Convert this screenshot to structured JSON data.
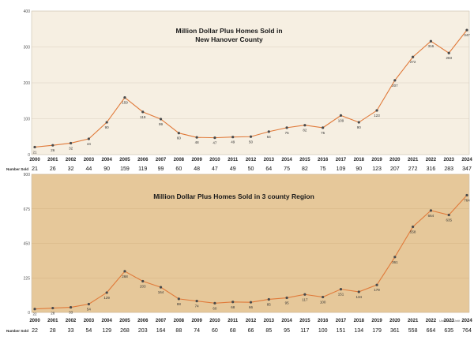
{
  "chart_data": [
    {
      "type": "line",
      "title": "Million Dollar Plus Homes Sold in\nNew Hanover County",
      "row_label": "Number Sold",
      "categories": [
        "2000",
        "2001",
        "2002",
        "2003",
        "2004",
        "2005",
        "2006",
        "2007",
        "2008",
        "2009",
        "2010",
        "2011",
        "2012",
        "2013",
        "2014",
        "2015",
        "2016",
        "2017",
        "2018",
        "2019",
        "2020",
        "2021",
        "2022",
        "2023",
        "2024"
      ],
      "series": [
        {
          "values": [
            21,
            26,
            32,
            44,
            90,
            159,
            119,
            99,
            60,
            48,
            47,
            49,
            50,
            64,
            75,
            82,
            75,
            109,
            90,
            123,
            207,
            272,
            316,
            283,
            347
          ]
        }
      ],
      "point_labels": [
        "21",
        "26",
        "32",
        "44",
        "90",
        "159",
        "119",
        "99",
        "60",
        "48",
        "47",
        "49",
        "50",
        "64",
        "75",
        "82",
        "75",
        "109",
        "90",
        "123",
        "207",
        "272",
        "316",
        "283",
        "347"
      ],
      "ylim": [
        0,
        400
      ],
      "yticks": [
        "0",
        "100",
        "200",
        "300",
        "400"
      ],
      "grid": true,
      "colors": {
        "background": "#f6efe2",
        "line": "#e07a3a",
        "marker": "#4a4a4a",
        "grid": "#d9d0bf"
      }
    },
    {
      "type": "line",
      "title": "Million Dollar Plus Homes Sold in 3 county Region",
      "row_label": "Number Sold",
      "categories": [
        "2000",
        "2001",
        "2002",
        "2003",
        "2004",
        "2005",
        "2006",
        "2007",
        "2008",
        "2009",
        "2010",
        "2011",
        "2012",
        "2013",
        "2014",
        "2015",
        "2016",
        "2017",
        "2018",
        "2019",
        "2020",
        "2021",
        "2022",
        "2023",
        "2024"
      ],
      "series": [
        {
          "values": [
            22,
            28,
            33,
            54,
            129,
            268,
            203,
            164,
            88,
            74,
            60,
            68,
            66,
            85,
            95,
            117,
            100,
            151,
            134,
            179,
            361,
            558,
            664,
            635,
            764
          ]
        }
      ],
      "point_labels": [
        "22",
        "28",
        "33",
        "54",
        "129",
        "268",
        "203",
        "164",
        "88",
        "74",
        "60",
        "68",
        "66",
        "85",
        "95",
        "117",
        "100",
        "151",
        "134",
        "179",
        "361",
        "558",
        "664",
        "635",
        "764"
      ],
      "ylim": [
        0,
        900
      ],
      "yticks": [
        "0",
        "225",
        "450",
        "675",
        "900"
      ],
      "grid": true,
      "colors": {
        "background": "#e6c89a",
        "line": "#e07a3a",
        "marker": "#4a4a4a",
        "grid": "#d4b384"
      }
    }
  ],
  "notes": {
    "untitled": "Untitled 1  Untit"
  }
}
